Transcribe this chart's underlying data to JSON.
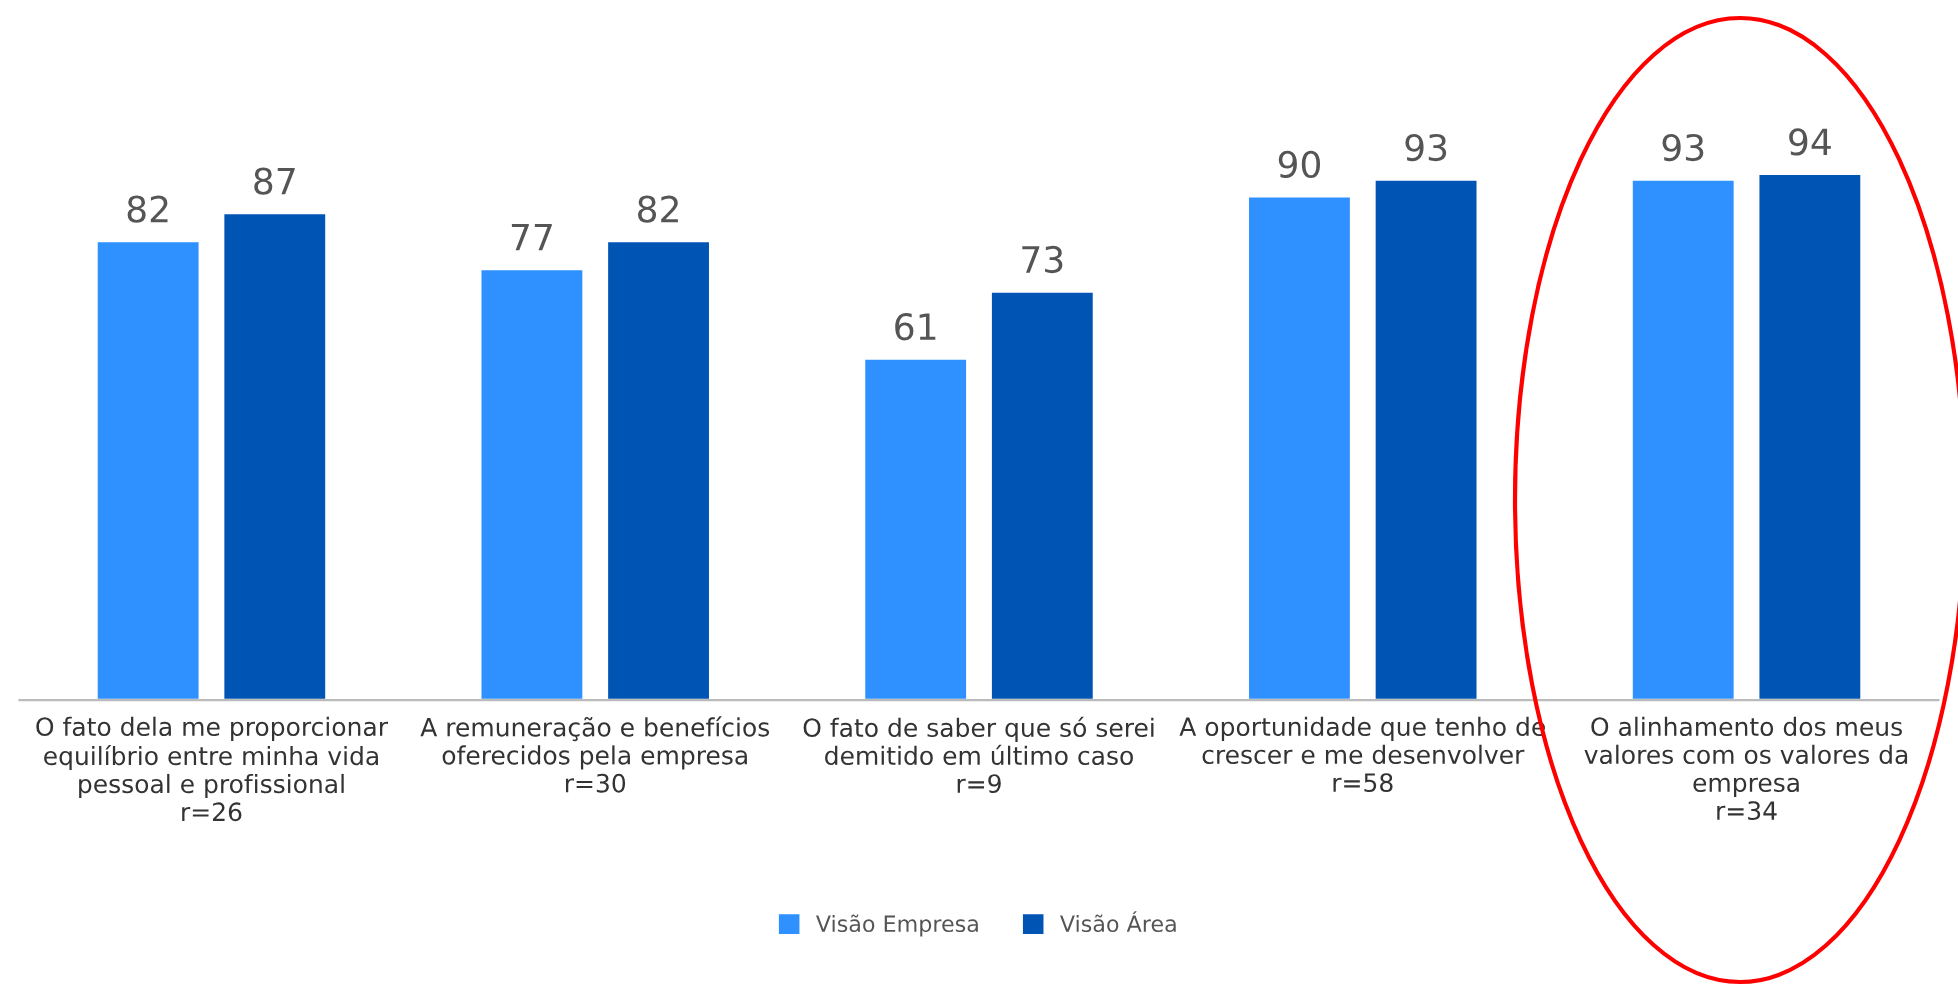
{
  "chart_data": {
    "type": "bar",
    "categories": [
      "O fato dela me proporcionar\nequilíbrio entre minha vida\npessoal e profissional\nr=26",
      "A remuneração e benefícios\noferecidos pela empresa\nr=30",
      "O fato de saber que só serei\ndemitido em último caso\nr=9",
      "A oportunidade que tenho de\ncrescer e me desenvolver\nr=58",
      "O alinhamento dos meus\nvalores com os valores da\nempresa\nr=34"
    ],
    "series": [
      {
        "name": "Visão Empresa",
        "color": "#2e91ff",
        "values": [
          82,
          77,
          61,
          90,
          93
        ]
      },
      {
        "name": "Visão Área",
        "color": "#0054b4",
        "values": [
          87,
          82,
          73,
          93,
          94
        ]
      }
    ],
    "data_labels": true,
    "legend": "bottom",
    "grid": false,
    "tick_labels": "x"
  }
}
